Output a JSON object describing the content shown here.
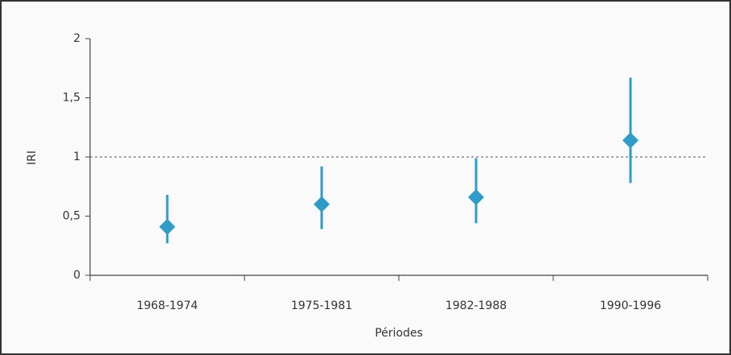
{
  "chart_data": {
    "type": "errorbar",
    "xlabel": "Périodes",
    "ylabel": "IRI",
    "categories": [
      "1968-1974",
      "1975-1981",
      "1982-1988",
      "1990-1996"
    ],
    "values": [
      0.41,
      0.6,
      0.66,
      1.14
    ],
    "ci_low": [
      0.27,
      0.39,
      0.44,
      0.78
    ],
    "ci_high": [
      0.68,
      0.92,
      0.99,
      1.67
    ],
    "color": "#2f9bc9",
    "ylim": [
      0,
      2
    ],
    "yticks": [
      0,
      {
        "value": 0.5,
        "label": "0,5"
      },
      1,
      {
        "value": 1.5,
        "label": "1,5"
      },
      2
    ],
    "reference_line": 1
  }
}
